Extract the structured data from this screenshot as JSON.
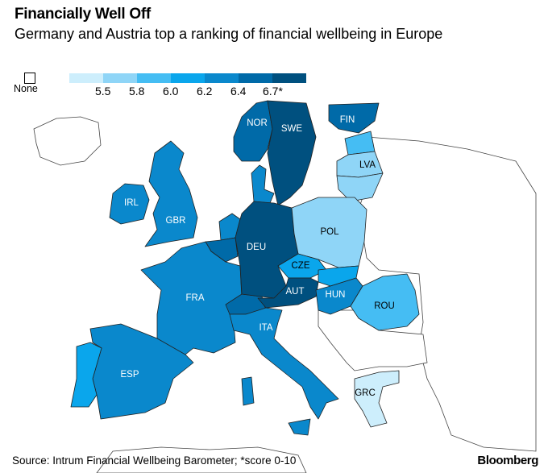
{
  "title": "Financially Well Off",
  "subtitle": "Germany and Austria top a ranking of financial wellbeing in Europe",
  "legend": {
    "none_label": "None",
    "colors": [
      "#cdeefc",
      "#8fd5f7",
      "#45bdf3",
      "#0aa6ec",
      "#0a88cc",
      "#006aa8",
      "#00507f"
    ],
    "ticks": [
      "5.5",
      "5.8",
      "6.0",
      "6.2",
      "6.4",
      "6.7*"
    ]
  },
  "countries": [
    {
      "code": "NOR",
      "bin": 5
    },
    {
      "code": "SWE",
      "bin": 6
    },
    {
      "code": "FIN",
      "bin": 5
    },
    {
      "code": "LVA",
      "bin": 1
    },
    {
      "code": "IRL",
      "bin": 4
    },
    {
      "code": "GBR",
      "bin": 4
    },
    {
      "code": "DEU",
      "bin": 6
    },
    {
      "code": "POL",
      "bin": 1
    },
    {
      "code": "CZE",
      "bin": 3
    },
    {
      "code": "AUT",
      "bin": 6
    },
    {
      "code": "HUN",
      "bin": 4
    },
    {
      "code": "ROU",
      "bin": 2
    },
    {
      "code": "FRA",
      "bin": 4
    },
    {
      "code": "ITA",
      "bin": 4
    },
    {
      "code": "ESP",
      "bin": 4
    },
    {
      "code": "GRC",
      "bin": 0
    }
  ],
  "unlabeled_countries": [
    {
      "name": "PRT",
      "bin": 3
    },
    {
      "name": "DNK",
      "bin": 4
    },
    {
      "name": "NLD",
      "bin": 4
    },
    {
      "name": "BEL",
      "bin": 5
    },
    {
      "name": "CHE",
      "bin": 5
    },
    {
      "name": "EST",
      "bin": 2
    },
    {
      "name": "LTU",
      "bin": 1
    },
    {
      "name": "SVK",
      "bin": 3
    }
  ],
  "source": "Source: Intrum Financial Wellbeing Barometer; *score 0-10",
  "brand": "Bloomberg"
}
